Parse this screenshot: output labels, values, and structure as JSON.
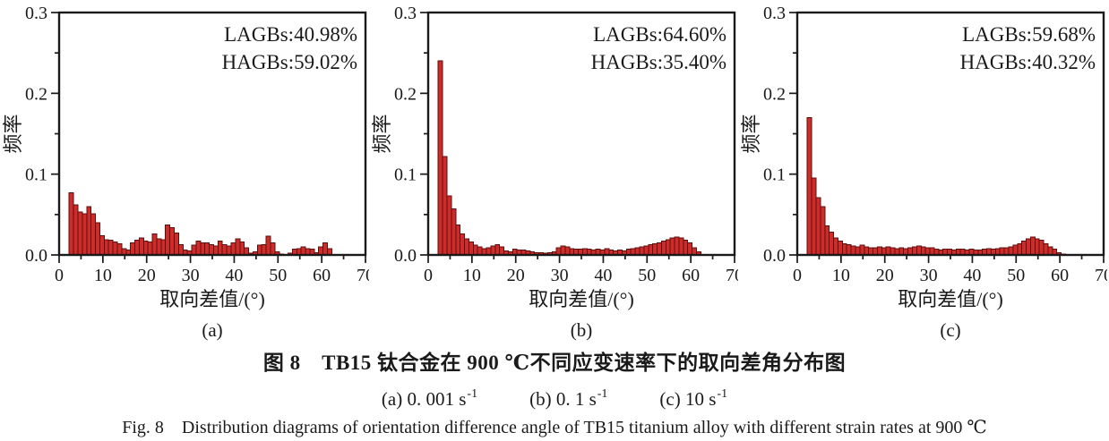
{
  "figure": {
    "caption_zh": "图 8　TB15 钛合金在 900 ℃不同应变速率下的取向差角分布图",
    "caption_en": "Fig. 8　Distribution diagrams of orientation difference angle of TB15 titanium alloy with different strain rates at 900 ℃",
    "strain_rates": [
      {
        "label": "(a)",
        "value": "0. 001 s",
        "exponent": "-1"
      },
      {
        "label": "(b)",
        "value": "0. 1 s",
        "exponent": "-1"
      },
      {
        "label": "(c)",
        "value": "10 s",
        "exponent": "-1"
      }
    ]
  },
  "colors": {
    "bar_fill": "#ce2b2b",
    "bar_stroke": "#5c100e",
    "axis": "#1a1a1a",
    "text": "#1a1a1a"
  },
  "chart_data": [
    {
      "type": "bar",
      "sublabel": "(a)",
      "annotations": [
        "LAGBs:40.98%",
        "HAGBs:59.02%"
      ],
      "xlabel": "取向差值/(°)",
      "ylabel": "频率",
      "xlim": [
        0,
        70
      ],
      "ylim": [
        0,
        0.3
      ],
      "x_ticks": [
        0,
        10,
        20,
        30,
        40,
        50,
        60,
        70
      ],
      "x_tick_labels": [
        "0",
        "10",
        "20",
        "30",
        "40",
        "50",
        "60",
        "70"
      ],
      "x_minor_ticks": [
        5,
        15,
        25,
        35,
        45,
        55,
        65
      ],
      "y_ticks": [
        0,
        0.1,
        0.2,
        0.3
      ],
      "y_tick_labels": [
        "0.0",
        "0.1",
        "0.2",
        "0.3"
      ],
      "y_minor_ticks": [
        0.05,
        0.15,
        0.25
      ],
      "bin_start": 2.3,
      "bin_width": 1,
      "values": [
        0.077,
        0.062,
        0.053,
        0.051,
        0.06,
        0.051,
        0.04,
        0.024,
        0.019,
        0.018,
        0.016,
        0.014,
        0.008,
        0.006,
        0.015,
        0.018,
        0.021,
        0.017,
        0.016,
        0.026,
        0.02,
        0.019,
        0.037,
        0.034,
        0.027,
        0.013,
        0.006,
        0.005,
        0.012,
        0.017,
        0.015,
        0.015,
        0.013,
        0.011,
        0.017,
        0.013,
        0.011,
        0.015,
        0.02,
        0.016,
        0.009,
        0.002,
        0.004,
        0.012,
        0.013,
        0.023,
        0.015,
        0.004,
        0.001,
        0.0,
        0.002,
        0.007,
        0.008,
        0.01,
        0.008,
        0.007,
        0.003,
        0.01,
        0.015,
        0.008
      ]
    },
    {
      "type": "bar",
      "sublabel": "(b)",
      "annotations": [
        "LAGBs:64.60%",
        "HAGBs:35.40%"
      ],
      "xlabel": "取向差值/(°)",
      "ylabel": "频率",
      "xlim": [
        0,
        70
      ],
      "ylim": [
        0,
        0.3
      ],
      "x_ticks": [
        0,
        10,
        20,
        30,
        40,
        50,
        60,
        70
      ],
      "x_tick_labels": [
        "0",
        "10",
        "20",
        "30",
        "40",
        "50",
        "60",
        "70"
      ],
      "x_minor_ticks": [
        5,
        15,
        25,
        35,
        45,
        55,
        65
      ],
      "y_ticks": [
        0,
        0.1,
        0.2,
        0.3
      ],
      "y_tick_labels": [
        "0.0",
        "0.1",
        "0.2",
        "0.3"
      ],
      "y_minor_ticks": [
        0.05,
        0.15,
        0.25
      ],
      "bin_start": 2.3,
      "bin_width": 1,
      "values": [
        0.24,
        0.122,
        0.073,
        0.057,
        0.037,
        0.026,
        0.02,
        0.016,
        0.012,
        0.01,
        0.008,
        0.009,
        0.011,
        0.013,
        0.01,
        0.005,
        0.004,
        0.007,
        0.006,
        0.006,
        0.005,
        0.004,
        0.003,
        0.003,
        0.002,
        0.003,
        0.004,
        0.009,
        0.011,
        0.01,
        0.008,
        0.007,
        0.007,
        0.008,
        0.007,
        0.006,
        0.007,
        0.006,
        0.008,
        0.006,
        0.005,
        0.006,
        0.005,
        0.007,
        0.008,
        0.009,
        0.01,
        0.011,
        0.013,
        0.014,
        0.015,
        0.017,
        0.019,
        0.021,
        0.022,
        0.021,
        0.018,
        0.015,
        0.009,
        0.004
      ]
    },
    {
      "type": "bar",
      "sublabel": "(c)",
      "annotations": [
        "LAGBs:59.68%",
        "HAGBs:40.32%"
      ],
      "xlabel": "取向差值/(°)",
      "ylabel": "频率",
      "xlim": [
        0,
        70
      ],
      "ylim": [
        0,
        0.3
      ],
      "x_ticks": [
        0,
        10,
        20,
        30,
        40,
        50,
        60,
        70
      ],
      "x_tick_labels": [
        "0",
        "10",
        "20",
        "30",
        "40",
        "50",
        "60",
        "70"
      ],
      "x_minor_ticks": [
        5,
        15,
        25,
        35,
        45,
        55,
        65
      ],
      "y_ticks": [
        0,
        0.1,
        0.2,
        0.3
      ],
      "y_tick_labels": [
        "0.0",
        "0.1",
        "0.2",
        "0.3"
      ],
      "y_minor_ticks": [
        0.05,
        0.15,
        0.25
      ],
      "bin_start": 2.3,
      "bin_width": 1,
      "values": [
        0.17,
        0.095,
        0.071,
        0.06,
        0.036,
        0.028,
        0.021,
        0.017,
        0.014,
        0.013,
        0.011,
        0.01,
        0.012,
        0.01,
        0.009,
        0.009,
        0.01,
        0.009,
        0.01,
        0.009,
        0.008,
        0.009,
        0.008,
        0.009,
        0.01,
        0.011,
        0.01,
        0.009,
        0.009,
        0.007,
        0.006,
        0.007,
        0.007,
        0.006,
        0.007,
        0.007,
        0.006,
        0.007,
        0.006,
        0.006,
        0.007,
        0.008,
        0.007,
        0.008,
        0.009,
        0.009,
        0.01,
        0.012,
        0.014,
        0.017,
        0.02,
        0.022,
        0.02,
        0.018,
        0.014,
        0.01,
        0.007,
        0.003,
        0.001,
        0.0005
      ]
    }
  ]
}
